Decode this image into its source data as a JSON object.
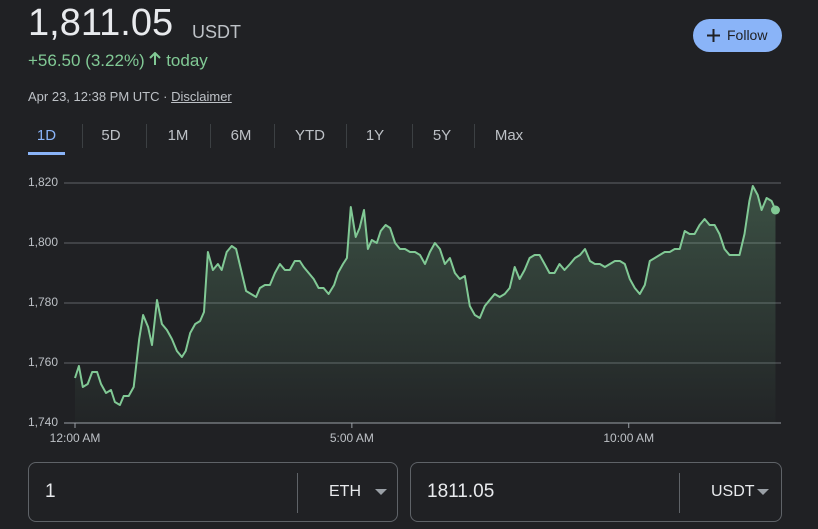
{
  "header": {
    "price": "1,811.05",
    "currency": "USDT",
    "change": "+56.50 (3.22%)",
    "period": "today",
    "timestamp": "Apr 23, 12:38 PM UTC ·",
    "disclaimer": "Disclaimer",
    "follow": "Follow"
  },
  "tabs": {
    "items": [
      "1D",
      "5D",
      "1M",
      "6M",
      "YTD",
      "1Y",
      "5Y",
      "Max"
    ],
    "selected": 0
  },
  "chart_data": {
    "type": "line",
    "color": "#81c995",
    "x": [
      0,
      0.07,
      0.14,
      0.23,
      0.31,
      0.4,
      0.47,
      0.56,
      0.65,
      0.72,
      0.81,
      0.88,
      0.97,
      1.06,
      1.16,
      1.23,
      1.32,
      1.39,
      1.48,
      1.57,
      1.66,
      1.75,
      1.84,
      1.93,
      2.0,
      2.08,
      2.17,
      2.26,
      2.33,
      2.4,
      2.49,
      2.58,
      2.65,
      2.74,
      2.83,
      2.91,
      3.0,
      3.09,
      3.18,
      3.27,
      3.34,
      3.43,
      3.52,
      3.61,
      3.7,
      3.79,
      3.88,
      3.97,
      4.06,
      4.13,
      4.22,
      4.31,
      4.4,
      4.49,
      4.58,
      4.68,
      4.75,
      4.84,
      4.91,
      4.98,
      5.07,
      5.14,
      5.22,
      5.29,
      5.36,
      5.45,
      5.52,
      5.61,
      5.69,
      5.78,
      5.87,
      5.96,
      6.05,
      6.14,
      6.23,
      6.32,
      6.41,
      6.5,
      6.59,
      6.68,
      6.77,
      6.86,
      6.95,
      7.04,
      7.13,
      7.22,
      7.31,
      7.4,
      7.49,
      7.58,
      7.67,
      7.76,
      7.85,
      7.94,
      8.03,
      8.12,
      8.21,
      8.3,
      8.39,
      8.48,
      8.57,
      8.66,
      8.75,
      8.84,
      8.94,
      9.03,
      9.12,
      9.21,
      9.3,
      9.39,
      9.48,
      9.57,
      9.66,
      9.75,
      9.84,
      9.93,
      10.02,
      10.11,
      10.2,
      10.29,
      10.38,
      10.47,
      10.56,
      10.65,
      10.74,
      10.83,
      10.92,
      11.01,
      11.1,
      11.19,
      11.28,
      11.37,
      11.46,
      11.55,
      11.64,
      11.73,
      11.82,
      11.91,
      12.0,
      12.09,
      12.18,
      12.24,
      12.33,
      12.4,
      12.49,
      12.58,
      12.65
    ],
    "values": [
      1755,
      1759,
      1752,
      1753,
      1757,
      1757,
      1753,
      1750,
      1751,
      1747,
      1746,
      1749,
      1749,
      1752,
      1768,
      1776,
      1772,
      1766,
      1781,
      1773,
      1771,
      1768,
      1764,
      1762,
      1764,
      1770,
      1773,
      1774,
      1777,
      1797,
      1791,
      1793,
      1791,
      1797,
      1799,
      1798,
      1791,
      1784,
      1783,
      1782,
      1785,
      1786,
      1786,
      1790,
      1793,
      1791,
      1791,
      1794,
      1794,
      1792,
      1790,
      1788,
      1785,
      1785,
      1783,
      1786,
      1790,
      1793,
      1795,
      1812,
      1802,
      1805,
      1811,
      1798,
      1801,
      1800,
      1804,
      1806,
      1805,
      1800,
      1798,
      1798,
      1797,
      1797,
      1796,
      1793,
      1797,
      1800,
      1798,
      1793,
      1795,
      1790,
      1788,
      1789,
      1779,
      1776,
      1775,
      1779,
      1781,
      1783,
      1782,
      1783,
      1785,
      1792,
      1788,
      1791,
      1795,
      1796,
      1796,
      1793,
      1790,
      1790,
      1793,
      1791,
      1793,
      1795,
      1796,
      1798,
      1794,
      1793,
      1793,
      1792,
      1793,
      1794,
      1794,
      1793,
      1788,
      1785,
      1783,
      1786,
      1794,
      1795,
      1796,
      1797,
      1797,
      1798,
      1798,
      1804,
      1803,
      1803,
      1806,
      1808,
      1806,
      1806,
      1803,
      1798,
      1796,
      1796,
      1796,
      1803,
      1814,
      1819,
      1816,
      1811,
      1815,
      1814,
      1811
    ],
    "xlim": [
      0,
      12.75
    ],
    "xticks": [
      {
        "value": 0,
        "label": "12:00 AM"
      },
      {
        "value": 5,
        "label": "5:00 AM"
      },
      {
        "value": 10,
        "label": "10:00 AM"
      }
    ],
    "ylim": [
      1740,
      1820
    ],
    "yticks": [
      {
        "value": 1740,
        "label": "1,740"
      },
      {
        "value": 1760,
        "label": "1,760"
      },
      {
        "value": 1780,
        "label": "1,780"
      },
      {
        "value": 1800,
        "label": "1,800"
      },
      {
        "value": 1820,
        "label": "1,820"
      }
    ],
    "grid": true
  },
  "converter": {
    "from": {
      "amount": "1",
      "currency": "ETH"
    },
    "to": {
      "amount": "1811.05",
      "currency": "USDT"
    }
  }
}
